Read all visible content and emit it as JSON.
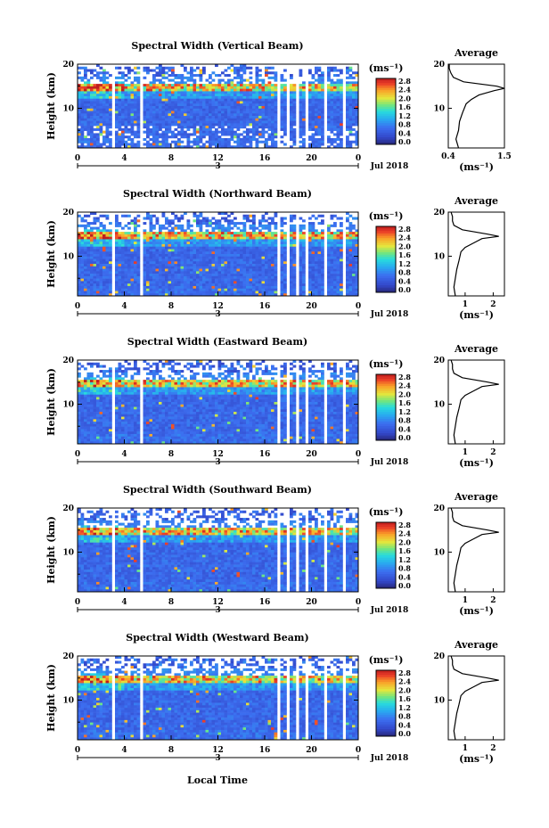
{
  "xlabel": "Local Time",
  "colorbar_unit": "(ms⁻¹)",
  "average_title": "Average",
  "average_xlabel": "(ms⁻¹)",
  "chart_data": [
    {
      "type": "heatmap",
      "title": "Spectral Width (Vertical Beam)",
      "ylabel": "Height (km)",
      "xlabel": "Local Time",
      "x_ticks": [
        "0",
        "4",
        "8",
        "12",
        "16",
        "20",
        "0"
      ],
      "x_range_hours": [
        0,
        24
      ],
      "y_ticks": [
        "20",
        "10"
      ],
      "ylim_km": [
        1,
        20
      ],
      "date_label": "3",
      "month_label": "Jul 2018",
      "colorbar": {
        "unit": "(ms⁻¹)",
        "ticks": [
          "2.8",
          "2.4",
          "2.0",
          "1.6",
          "1.2",
          "0.8",
          "0.4",
          "0.0"
        ],
        "range": [
          0,
          2.8
        ]
      },
      "data_gaps_hours": [
        [
          3.0,
          3.3
        ],
        [
          5.4,
          5.7
        ],
        [
          17.1,
          17.4
        ],
        [
          17.8,
          18.1
        ],
        [
          18.8,
          19.0
        ],
        [
          19.6,
          19.7
        ],
        [
          21.1,
          21.3
        ],
        [
          22.6,
          22.9
        ]
      ],
      "average_profile": {
        "xticks": [
          "0.4",
          "1.5"
        ],
        "xlim": [
          0.4,
          1.5
        ],
        "height_km": [
          1,
          3,
          5,
          7,
          9,
          11,
          12,
          13,
          14,
          14.5,
          15,
          16,
          17,
          18,
          19,
          20
        ],
        "width_ms": [
          0.6,
          0.55,
          0.6,
          0.62,
          0.68,
          0.75,
          0.85,
          1.0,
          1.3,
          1.5,
          1.35,
          0.7,
          0.5,
          0.45,
          0.42,
          0.42
        ]
      }
    },
    {
      "type": "heatmap",
      "title": "Spectral Width (Northward Beam)",
      "ylabel": "Height (km)",
      "xlabel": "Local Time",
      "x_ticks": [
        "0",
        "4",
        "8",
        "12",
        "16",
        "20",
        "0"
      ],
      "x_range_hours": [
        0,
        24
      ],
      "y_ticks": [
        "20",
        "10"
      ],
      "ylim_km": [
        1,
        20
      ],
      "date_label": "3",
      "month_label": "Jul 2018",
      "colorbar": {
        "unit": "(ms⁻¹)",
        "ticks": [
          "2.8",
          "2.4",
          "2.0",
          "1.6",
          "1.2",
          "0.8",
          "0.4",
          "0.0"
        ],
        "range": [
          0,
          2.8
        ]
      },
      "data_gaps_hours": [
        [
          3.0,
          3.3
        ],
        [
          5.4,
          5.7
        ],
        [
          17.1,
          17.4
        ],
        [
          17.8,
          18.1
        ],
        [
          18.8,
          19.0
        ],
        [
          19.6,
          19.7
        ],
        [
          21.1,
          21.3
        ],
        [
          22.6,
          22.9
        ]
      ],
      "average_profile": {
        "xticks": [
          "1",
          "2"
        ],
        "xlim": [
          0.4,
          2.4
        ],
        "height_km": [
          1,
          3,
          5,
          7,
          9,
          11,
          12,
          13,
          14,
          14.5,
          15,
          16,
          17,
          18,
          19,
          20
        ],
        "width_ms": [
          0.65,
          0.6,
          0.65,
          0.7,
          0.78,
          0.85,
          1.0,
          1.3,
          1.6,
          2.2,
          1.8,
          0.9,
          0.6,
          0.55,
          0.55,
          0.5
        ]
      }
    },
    {
      "type": "heatmap",
      "title": "Spectral Width (Eastward Beam)",
      "ylabel": "Height (km)",
      "xlabel": "Local Time",
      "x_ticks": [
        "0",
        "4",
        "8",
        "12",
        "16",
        "20",
        "0"
      ],
      "x_range_hours": [
        0,
        24
      ],
      "y_ticks": [
        "20",
        "10"
      ],
      "ylim_km": [
        1,
        20
      ],
      "date_label": "3",
      "month_label": "Jul 2018",
      "colorbar": {
        "unit": "(ms⁻¹)",
        "ticks": [
          "2.8",
          "2.4",
          "2.0",
          "1.6",
          "1.2",
          "0.8",
          "0.4",
          "0.0"
        ],
        "range": [
          0,
          2.8
        ]
      },
      "data_gaps_hours": [
        [
          3.0,
          3.3
        ],
        [
          5.4,
          5.7
        ],
        [
          17.1,
          17.4
        ],
        [
          17.8,
          18.1
        ],
        [
          18.8,
          19.0
        ],
        [
          19.6,
          19.7
        ],
        [
          21.1,
          21.3
        ],
        [
          22.6,
          22.9
        ]
      ],
      "average_profile": {
        "xticks": [
          "1",
          "2"
        ],
        "xlim": [
          0.4,
          2.4
        ],
        "height_km": [
          1,
          3,
          5,
          7,
          9,
          11,
          12,
          13,
          14,
          14.5,
          15,
          16,
          17,
          18,
          19,
          20
        ],
        "width_ms": [
          0.65,
          0.6,
          0.65,
          0.7,
          0.78,
          0.85,
          1.0,
          1.3,
          1.6,
          2.2,
          1.8,
          0.9,
          0.6,
          0.55,
          0.55,
          0.5
        ]
      }
    },
    {
      "type": "heatmap",
      "title": "Spectral Width (Southward Beam)",
      "ylabel": "Height (km)",
      "xlabel": "Local Time",
      "x_ticks": [
        "0",
        "4",
        "8",
        "12",
        "16",
        "20",
        "0"
      ],
      "x_range_hours": [
        0,
        24
      ],
      "y_ticks": [
        "20",
        "10"
      ],
      "ylim_km": [
        1,
        20
      ],
      "date_label": "3",
      "month_label": "Jul 2018",
      "colorbar": {
        "unit": "(ms⁻¹)",
        "ticks": [
          "2.8",
          "2.4",
          "2.0",
          "1.6",
          "1.2",
          "0.8",
          "0.4",
          "0.0"
        ],
        "range": [
          0,
          2.8
        ]
      },
      "data_gaps_hours": [
        [
          3.0,
          3.3
        ],
        [
          5.4,
          5.7
        ],
        [
          17.1,
          17.4
        ],
        [
          17.8,
          18.1
        ],
        [
          18.8,
          19.0
        ],
        [
          19.6,
          19.7
        ],
        [
          21.1,
          21.3
        ],
        [
          22.6,
          22.9
        ]
      ],
      "average_profile": {
        "xticks": [
          "1",
          "2"
        ],
        "xlim": [
          0.4,
          2.4
        ],
        "height_km": [
          1,
          3,
          5,
          7,
          9,
          11,
          12,
          13,
          14,
          14.5,
          15,
          16,
          17,
          18,
          19,
          20
        ],
        "width_ms": [
          0.65,
          0.6,
          0.65,
          0.7,
          0.78,
          0.85,
          1.0,
          1.3,
          1.6,
          2.2,
          1.8,
          0.9,
          0.6,
          0.55,
          0.55,
          0.5
        ]
      }
    },
    {
      "type": "heatmap",
      "title": "Spectral Width (Westward Beam)",
      "ylabel": "Height (km)",
      "xlabel": "Local Time",
      "x_ticks": [
        "0",
        "4",
        "8",
        "12",
        "16",
        "20",
        "0"
      ],
      "x_range_hours": [
        0,
        24
      ],
      "y_ticks": [
        "20",
        "10"
      ],
      "ylim_km": [
        1,
        20
      ],
      "date_label": "3",
      "month_label": "Jul 2018",
      "colorbar": {
        "unit": "(ms⁻¹)",
        "ticks": [
          "2.8",
          "2.4",
          "2.0",
          "1.6",
          "1.2",
          "0.8",
          "0.4",
          "0.0"
        ],
        "range": [
          0,
          2.8
        ]
      },
      "data_gaps_hours": [
        [
          3.0,
          3.3
        ],
        [
          5.4,
          5.7
        ],
        [
          17.1,
          17.4
        ],
        [
          17.8,
          18.1
        ],
        [
          18.8,
          19.0
        ],
        [
          19.6,
          19.7
        ],
        [
          21.1,
          21.3
        ],
        [
          22.6,
          22.9
        ]
      ],
      "average_profile": {
        "xticks": [
          "1",
          "2"
        ],
        "xlim": [
          0.4,
          2.4
        ],
        "height_km": [
          1,
          3,
          5,
          7,
          9,
          11,
          12,
          13,
          14,
          14.5,
          15,
          16,
          17,
          18,
          19,
          20
        ],
        "width_ms": [
          0.65,
          0.6,
          0.65,
          0.7,
          0.78,
          0.85,
          1.0,
          1.3,
          1.6,
          2.2,
          1.8,
          0.9,
          0.6,
          0.55,
          0.55,
          0.5
        ]
      }
    }
  ]
}
